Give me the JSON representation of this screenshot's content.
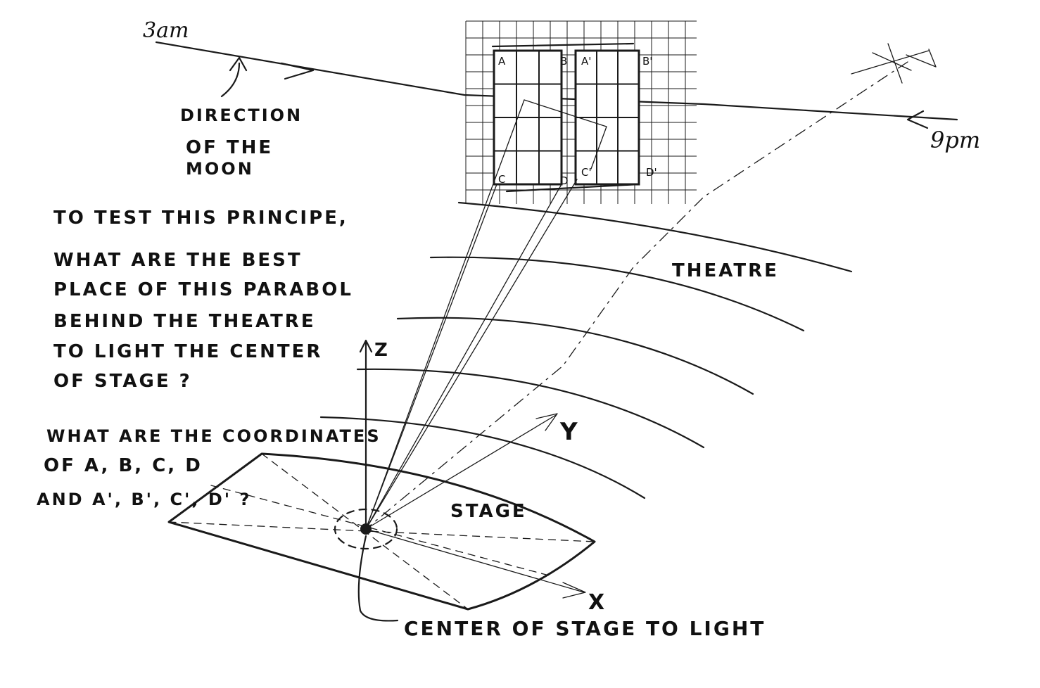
{
  "time_labels": {
    "start": "3am",
    "end": "9pm"
  },
  "moon_label": [
    "DIRECTION",
    "OF THE",
    "MOON"
  ],
  "panel_corners": [
    "A",
    "B",
    "A'",
    "B'",
    "C",
    "D",
    "C'",
    "D'"
  ],
  "theatre_label": "THEATRE",
  "stage_label": "STAGE",
  "axes": {
    "x": "X",
    "y": "Y",
    "z": "Z"
  },
  "question_1": [
    "TO TEST THIS PRINCIPE,",
    "WHAT ARE THE BEST",
    "PLACE OF THIS PARABOL",
    "BEHIND THE THEATRE",
    "TO LIGHT THE CENTER",
    "OF STAGE ?"
  ],
  "question_2": [
    "WHAT ARE THE COORDINATES",
    "OF A, B, C, D",
    "AND A', B', C', D' ?"
  ],
  "center_label": "CENTER OF STAGE TO LIGHT"
}
